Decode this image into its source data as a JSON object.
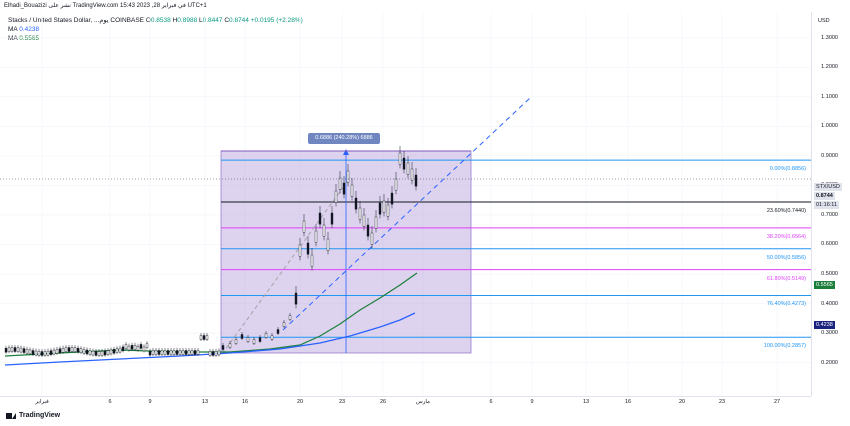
{
  "header": {
    "publisher_line": "Elhadi_Bouazizi نشر على TradingView.com في فبراير 28, 2023 15:43 UTC+1",
    "symbol": "Stacks / United States Dollar, ...يوم COINBASE",
    "open_label": "O",
    "open": "0.8538",
    "high_label": "H",
    "high": "0.8988",
    "low_label": "L",
    "low": "0.8447",
    "close_label": "C",
    "close": "0.8744",
    "change": "+0.0195 (+2.28%)"
  },
  "indicators": [
    {
      "label": "MA",
      "value": "0.4238",
      "color": "#2962ff"
    },
    {
      "label": "MA",
      "value": "0.5565",
      "color": "#1b7f3b"
    }
  ],
  "price_axis": {
    "currency": "USD",
    "ticks": [
      "1.3000",
      "1.2000",
      "1.1000",
      "1.0000",
      "0.9000",
      "0.8000",
      "0.7000",
      "0.6000",
      "0.5000",
      "0.4000",
      "0.3000",
      "0.2000"
    ],
    "badges": {
      "symbol_tag": "STX/USD",
      "last_price": "0.8744",
      "countdown": "01:16:11",
      "ma_green": "0.5565",
      "ma_blue": "0.4238"
    }
  },
  "time_axis": {
    "ticks": [
      "فبراير",
      "6",
      "9",
      "13",
      "16",
      "20",
      "23",
      "26",
      "مارس",
      "6",
      "9",
      "13",
      "16",
      "20",
      "23",
      "27"
    ]
  },
  "fibonacci": [
    {
      "level": 0.0,
      "label": "0.00%(0.8856)",
      "price": 0.8856,
      "color": "#2196f3"
    },
    {
      "level": 0.236,
      "label": "23.60%(0.7440)",
      "price": 0.744,
      "color": "#131722"
    },
    {
      "level": 0.382,
      "label": "38.20%(0.6564)",
      "price": 0.6564,
      "color": "#e040fb"
    },
    {
      "level": 0.5,
      "label": "50.00%(0.5856)",
      "price": 0.5856,
      "color": "#2196f3"
    },
    {
      "level": 0.618,
      "label": "61.80%(0.5149)",
      "price": 0.5149,
      "color": "#e040fb"
    },
    {
      "level": 0.764,
      "label": "76.40%(0.4273)",
      "price": 0.4273,
      "color": "#2196f3"
    },
    {
      "level": 1.0,
      "label": "100.00%(0.2857)",
      "price": 0.2857,
      "color": "#2196f3"
    }
  ],
  "measure_tool": {
    "label": "0.6886 (240.28%) 6886"
  },
  "colors": {
    "measure_fill": "#b39ddb",
    "ma_blue": "#2962ff",
    "ma_green": "#1b7f3b",
    "candle_up": "#131722",
    "trend_dashed": "#2962ff"
  },
  "footer": {
    "brand": "TradingView"
  }
}
